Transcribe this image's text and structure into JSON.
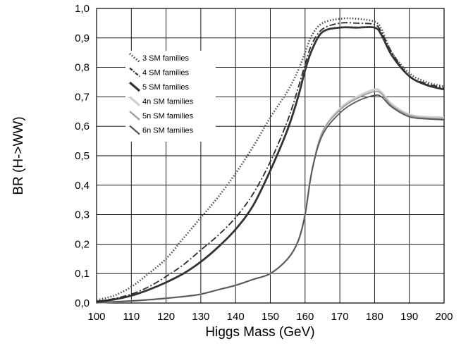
{
  "chart_data": {
    "type": "line",
    "title": "",
    "xlabel": "Higgs Mass (GeV)",
    "ylabel": "BR (H->WW)",
    "xlim": [
      100,
      200
    ],
    "ylim": [
      0.0,
      1.0
    ],
    "grid": true,
    "legend_position": "upper-left-inside",
    "x_ticks": [
      "100",
      "110",
      "120",
      "130",
      "140",
      "150",
      "160",
      "170",
      "180",
      "190",
      "200"
    ],
    "y_ticks": [
      "0,0",
      "0,1",
      "0,2",
      "0,3",
      "0,4",
      "0,5",
      "0,6",
      "0,7",
      "0,8",
      "0,9",
      "1,0"
    ],
    "x": [
      100,
      105,
      110,
      115,
      120,
      125,
      130,
      135,
      140,
      145,
      150,
      155,
      158,
      160,
      162,
      165,
      170,
      175,
      180,
      182,
      185,
      190,
      195,
      200
    ],
    "series": [
      {
        "name": "3 SM families",
        "color": "#4a4a4a",
        "style": "dotted",
        "values": [
          0.01,
          0.025,
          0.055,
          0.1,
          0.15,
          0.22,
          0.29,
          0.36,
          0.44,
          0.53,
          0.63,
          0.72,
          0.79,
          0.85,
          0.91,
          0.95,
          0.965,
          0.965,
          0.955,
          0.93,
          0.85,
          0.78,
          0.75,
          0.735
        ]
      },
      {
        "name": "4 SM families",
        "color": "#2a2a2a",
        "style": "dashdot",
        "values": [
          0.005,
          0.015,
          0.03,
          0.055,
          0.09,
          0.13,
          0.18,
          0.23,
          0.29,
          0.37,
          0.48,
          0.62,
          0.73,
          0.81,
          0.88,
          0.93,
          0.95,
          0.95,
          0.945,
          0.92,
          0.85,
          0.77,
          0.745,
          0.73
        ]
      },
      {
        "name": "5 SM families",
        "color": "#333333",
        "style": "solid-thick",
        "values": [
          0.005,
          0.012,
          0.025,
          0.045,
          0.07,
          0.1,
          0.14,
          0.19,
          0.25,
          0.33,
          0.45,
          0.59,
          0.7,
          0.79,
          0.86,
          0.92,
          0.935,
          0.935,
          0.935,
          0.91,
          0.84,
          0.77,
          0.74,
          0.725
        ]
      },
      {
        "name": "4n SM families",
        "color": "#d0d0d0",
        "style": "solid-thick",
        "values": [
          0.001,
          0.004,
          0.007,
          0.011,
          0.016,
          0.022,
          0.03,
          0.045,
          0.06,
          0.08,
          0.1,
          0.15,
          0.21,
          0.3,
          0.45,
          0.58,
          0.66,
          0.7,
          0.725,
          0.715,
          0.675,
          0.64,
          0.632,
          0.63
        ]
      },
      {
        "name": "5n SM families",
        "color": "#9a9a9a",
        "style": "solid",
        "values": [
          0.001,
          0.004,
          0.007,
          0.011,
          0.016,
          0.022,
          0.03,
          0.045,
          0.06,
          0.08,
          0.1,
          0.15,
          0.21,
          0.3,
          0.45,
          0.58,
          0.655,
          0.695,
          0.718,
          0.71,
          0.67,
          0.637,
          0.628,
          0.627
        ]
      },
      {
        "name": "6n SM families",
        "color": "#555555",
        "style": "solid",
        "values": [
          0.001,
          0.004,
          0.007,
          0.011,
          0.016,
          0.022,
          0.03,
          0.045,
          0.06,
          0.08,
          0.1,
          0.15,
          0.21,
          0.3,
          0.45,
          0.57,
          0.645,
          0.685,
          0.705,
          0.7,
          0.665,
          0.632,
          0.625,
          0.622
        ]
      }
    ]
  }
}
